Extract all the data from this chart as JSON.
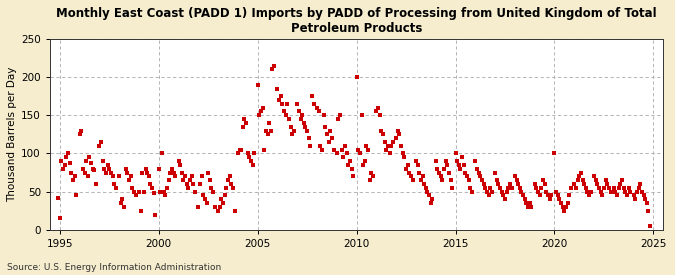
{
  "title": "Monthly East Coast (PADD 1) Imports by PADD of Processing from United Kingdom of Total\nPetroleum Products",
  "ylabel": "Thousand Barrels per Day",
  "source": "Source: U.S. Energy Information Administration",
  "fig_background_color": "#F5EDCE",
  "plot_background_color": "#FFFFFF",
  "marker_color": "#CC0000",
  "xlim": [
    1994.5,
    2025.5
  ],
  "ylim": [
    0,
    250
  ],
  "yticks": [
    0,
    50,
    100,
    150,
    200,
    250
  ],
  "xticks": [
    1995,
    2000,
    2005,
    2010,
    2015,
    2020,
    2025
  ],
  "data_points": [
    [
      1994.917,
      42
    ],
    [
      1995.0,
      15
    ],
    [
      1995.083,
      90
    ],
    [
      1995.167,
      80
    ],
    [
      1995.25,
      85
    ],
    [
      1995.333,
      95
    ],
    [
      1995.417,
      100
    ],
    [
      1995.5,
      88
    ],
    [
      1995.583,
      75
    ],
    [
      1995.667,
      65
    ],
    [
      1995.75,
      70
    ],
    [
      1995.833,
      45
    ],
    [
      1996.0,
      125
    ],
    [
      1996.083,
      130
    ],
    [
      1996.167,
      80
    ],
    [
      1996.25,
      75
    ],
    [
      1996.333,
      90
    ],
    [
      1996.417,
      70
    ],
    [
      1996.5,
      95
    ],
    [
      1996.583,
      88
    ],
    [
      1996.667,
      80
    ],
    [
      1996.75,
      78
    ],
    [
      1996.833,
      60
    ],
    [
      1997.0,
      110
    ],
    [
      1997.083,
      115
    ],
    [
      1997.167,
      90
    ],
    [
      1997.25,
      80
    ],
    [
      1997.333,
      75
    ],
    [
      1997.417,
      85
    ],
    [
      1997.5,
      80
    ],
    [
      1997.583,
      75
    ],
    [
      1997.667,
      70
    ],
    [
      1997.75,
      60
    ],
    [
      1997.833,
      55
    ],
    [
      1998.0,
      70
    ],
    [
      1998.083,
      35
    ],
    [
      1998.167,
      40
    ],
    [
      1998.25,
      30
    ],
    [
      1998.333,
      80
    ],
    [
      1998.417,
      75
    ],
    [
      1998.5,
      65
    ],
    [
      1998.583,
      70
    ],
    [
      1998.667,
      55
    ],
    [
      1998.75,
      50
    ],
    [
      1998.833,
      45
    ],
    [
      1999.0,
      50
    ],
    [
      1999.083,
      25
    ],
    [
      1999.167,
      75
    ],
    [
      1999.25,
      50
    ],
    [
      1999.333,
      80
    ],
    [
      1999.417,
      75
    ],
    [
      1999.5,
      70
    ],
    [
      1999.583,
      60
    ],
    [
      1999.667,
      55
    ],
    [
      1999.75,
      48
    ],
    [
      1999.833,
      20
    ],
    [
      2000.0,
      80
    ],
    [
      2000.083,
      50
    ],
    [
      2000.167,
      100
    ],
    [
      2000.25,
      50
    ],
    [
      2000.333,
      45
    ],
    [
      2000.417,
      55
    ],
    [
      2000.5,
      65
    ],
    [
      2000.583,
      75
    ],
    [
      2000.667,
      80
    ],
    [
      2000.75,
      75
    ],
    [
      2000.833,
      70
    ],
    [
      2001.0,
      90
    ],
    [
      2001.083,
      85
    ],
    [
      2001.167,
      75
    ],
    [
      2001.25,
      65
    ],
    [
      2001.333,
      70
    ],
    [
      2001.417,
      60
    ],
    [
      2001.5,
      55
    ],
    [
      2001.583,
      65
    ],
    [
      2001.667,
      70
    ],
    [
      2001.75,
      60
    ],
    [
      2001.833,
      50
    ],
    [
      2002.0,
      30
    ],
    [
      2002.083,
      60
    ],
    [
      2002.167,
      70
    ],
    [
      2002.25,
      45
    ],
    [
      2002.333,
      40
    ],
    [
      2002.417,
      35
    ],
    [
      2002.5,
      75
    ],
    [
      2002.583,
      65
    ],
    [
      2002.667,
      55
    ],
    [
      2002.75,
      50
    ],
    [
      2002.833,
      30
    ],
    [
      2003.0,
      25
    ],
    [
      2003.083,
      30
    ],
    [
      2003.167,
      40
    ],
    [
      2003.25,
      35
    ],
    [
      2003.333,
      45
    ],
    [
      2003.417,
      55
    ],
    [
      2003.5,
      65
    ],
    [
      2003.583,
      70
    ],
    [
      2003.667,
      60
    ],
    [
      2003.75,
      55
    ],
    [
      2003.833,
      25
    ],
    [
      2004.0,
      100
    ],
    [
      2004.083,
      105
    ],
    [
      2004.167,
      105
    ],
    [
      2004.25,
      135
    ],
    [
      2004.333,
      145
    ],
    [
      2004.417,
      140
    ],
    [
      2004.5,
      100
    ],
    [
      2004.583,
      95
    ],
    [
      2004.667,
      90
    ],
    [
      2004.75,
      85
    ],
    [
      2004.833,
      100
    ],
    [
      2005.0,
      190
    ],
    [
      2005.083,
      150
    ],
    [
      2005.167,
      155
    ],
    [
      2005.25,
      160
    ],
    [
      2005.333,
      105
    ],
    [
      2005.417,
      130
    ],
    [
      2005.5,
      125
    ],
    [
      2005.583,
      140
    ],
    [
      2005.667,
      130
    ],
    [
      2005.75,
      210
    ],
    [
      2005.833,
      215
    ],
    [
      2006.0,
      185
    ],
    [
      2006.083,
      170
    ],
    [
      2006.167,
      175
    ],
    [
      2006.25,
      165
    ],
    [
      2006.333,
      155
    ],
    [
      2006.417,
      150
    ],
    [
      2006.5,
      165
    ],
    [
      2006.583,
      145
    ],
    [
      2006.667,
      135
    ],
    [
      2006.75,
      125
    ],
    [
      2006.833,
      130
    ],
    [
      2007.0,
      165
    ],
    [
      2007.083,
      155
    ],
    [
      2007.167,
      145
    ],
    [
      2007.25,
      150
    ],
    [
      2007.333,
      140
    ],
    [
      2007.417,
      135
    ],
    [
      2007.5,
      130
    ],
    [
      2007.583,
      120
    ],
    [
      2007.667,
      110
    ],
    [
      2007.75,
      175
    ],
    [
      2007.833,
      165
    ],
    [
      2008.0,
      160
    ],
    [
      2008.083,
      155
    ],
    [
      2008.167,
      110
    ],
    [
      2008.25,
      105
    ],
    [
      2008.333,
      150
    ],
    [
      2008.417,
      135
    ],
    [
      2008.5,
      125
    ],
    [
      2008.583,
      115
    ],
    [
      2008.667,
      130
    ],
    [
      2008.75,
      120
    ],
    [
      2008.833,
      105
    ],
    [
      2009.0,
      100
    ],
    [
      2009.083,
      145
    ],
    [
      2009.167,
      150
    ],
    [
      2009.25,
      105
    ],
    [
      2009.333,
      95
    ],
    [
      2009.417,
      110
    ],
    [
      2009.5,
      100
    ],
    [
      2009.583,
      85
    ],
    [
      2009.667,
      90
    ],
    [
      2009.75,
      80
    ],
    [
      2009.833,
      70
    ],
    [
      2010.0,
      200
    ],
    [
      2010.083,
      105
    ],
    [
      2010.167,
      100
    ],
    [
      2010.25,
      150
    ],
    [
      2010.333,
      85
    ],
    [
      2010.417,
      90
    ],
    [
      2010.5,
      110
    ],
    [
      2010.583,
      105
    ],
    [
      2010.667,
      65
    ],
    [
      2010.75,
      75
    ],
    [
      2010.833,
      70
    ],
    [
      2011.0,
      155
    ],
    [
      2011.083,
      160
    ],
    [
      2011.167,
      150
    ],
    [
      2011.25,
      130
    ],
    [
      2011.333,
      125
    ],
    [
      2011.417,
      115
    ],
    [
      2011.5,
      105
    ],
    [
      2011.583,
      110
    ],
    [
      2011.667,
      100
    ],
    [
      2011.75,
      110
    ],
    [
      2011.833,
      115
    ],
    [
      2012.0,
      120
    ],
    [
      2012.083,
      130
    ],
    [
      2012.167,
      125
    ],
    [
      2012.25,
      110
    ],
    [
      2012.333,
      100
    ],
    [
      2012.417,
      95
    ],
    [
      2012.5,
      80
    ],
    [
      2012.583,
      85
    ],
    [
      2012.667,
      75
    ],
    [
      2012.75,
      70
    ],
    [
      2012.833,
      65
    ],
    [
      2013.0,
      90
    ],
    [
      2013.083,
      85
    ],
    [
      2013.167,
      75
    ],
    [
      2013.25,
      65
    ],
    [
      2013.333,
      70
    ],
    [
      2013.417,
      60
    ],
    [
      2013.5,
      55
    ],
    [
      2013.583,
      50
    ],
    [
      2013.667,
      45
    ],
    [
      2013.75,
      35
    ],
    [
      2013.833,
      40
    ],
    [
      2014.0,
      90
    ],
    [
      2014.083,
      80
    ],
    [
      2014.167,
      75
    ],
    [
      2014.25,
      70
    ],
    [
      2014.333,
      65
    ],
    [
      2014.417,
      80
    ],
    [
      2014.5,
      90
    ],
    [
      2014.583,
      85
    ],
    [
      2014.667,
      75
    ],
    [
      2014.75,
      65
    ],
    [
      2014.833,
      55
    ],
    [
      2015.0,
      100
    ],
    [
      2015.083,
      90
    ],
    [
      2015.167,
      85
    ],
    [
      2015.25,
      80
    ],
    [
      2015.333,
      95
    ],
    [
      2015.417,
      85
    ],
    [
      2015.5,
      75
    ],
    [
      2015.583,
      70
    ],
    [
      2015.667,
      65
    ],
    [
      2015.75,
      55
    ],
    [
      2015.833,
      50
    ],
    [
      2016.0,
      90
    ],
    [
      2016.083,
      80
    ],
    [
      2016.167,
      75
    ],
    [
      2016.25,
      70
    ],
    [
      2016.333,
      65
    ],
    [
      2016.417,
      60
    ],
    [
      2016.5,
      55
    ],
    [
      2016.583,
      50
    ],
    [
      2016.667,
      45
    ],
    [
      2016.75,
      55
    ],
    [
      2016.833,
      50
    ],
    [
      2017.0,
      75
    ],
    [
      2017.083,
      65
    ],
    [
      2017.167,
      60
    ],
    [
      2017.25,
      55
    ],
    [
      2017.333,
      50
    ],
    [
      2017.417,
      45
    ],
    [
      2017.5,
      40
    ],
    [
      2017.583,
      50
    ],
    [
      2017.667,
      55
    ],
    [
      2017.75,
      60
    ],
    [
      2017.833,
      55
    ],
    [
      2018.0,
      70
    ],
    [
      2018.083,
      65
    ],
    [
      2018.167,
      60
    ],
    [
      2018.25,
      55
    ],
    [
      2018.333,
      50
    ],
    [
      2018.417,
      45
    ],
    [
      2018.5,
      40
    ],
    [
      2018.583,
      35
    ],
    [
      2018.667,
      30
    ],
    [
      2018.75,
      35
    ],
    [
      2018.833,
      30
    ],
    [
      2019.0,
      60
    ],
    [
      2019.083,
      55
    ],
    [
      2019.167,
      50
    ],
    [
      2019.25,
      45
    ],
    [
      2019.333,
      55
    ],
    [
      2019.417,
      65
    ],
    [
      2019.5,
      60
    ],
    [
      2019.583,
      50
    ],
    [
      2019.667,
      45
    ],
    [
      2019.75,
      40
    ],
    [
      2019.833,
      45
    ],
    [
      2020.0,
      100
    ],
    [
      2020.083,
      50
    ],
    [
      2020.167,
      45
    ],
    [
      2020.25,
      40
    ],
    [
      2020.333,
      35
    ],
    [
      2020.417,
      30
    ],
    [
      2020.5,
      25
    ],
    [
      2020.583,
      30
    ],
    [
      2020.667,
      35
    ],
    [
      2020.75,
      45
    ],
    [
      2020.833,
      55
    ],
    [
      2021.0,
      60
    ],
    [
      2021.083,
      55
    ],
    [
      2021.167,
      65
    ],
    [
      2021.25,
      70
    ],
    [
      2021.333,
      75
    ],
    [
      2021.417,
      65
    ],
    [
      2021.5,
      60
    ],
    [
      2021.583,
      55
    ],
    [
      2021.667,
      50
    ],
    [
      2021.75,
      45
    ],
    [
      2021.833,
      50
    ],
    [
      2022.0,
      70
    ],
    [
      2022.083,
      65
    ],
    [
      2022.167,
      60
    ],
    [
      2022.25,
      55
    ],
    [
      2022.333,
      50
    ],
    [
      2022.417,
      45
    ],
    [
      2022.5,
      55
    ],
    [
      2022.583,
      65
    ],
    [
      2022.667,
      60
    ],
    [
      2022.75,
      55
    ],
    [
      2022.833,
      50
    ],
    [
      2023.0,
      55
    ],
    [
      2023.083,
      50
    ],
    [
      2023.167,
      45
    ],
    [
      2023.25,
      55
    ],
    [
      2023.333,
      60
    ],
    [
      2023.417,
      65
    ],
    [
      2023.5,
      55
    ],
    [
      2023.583,
      50
    ],
    [
      2023.667,
      45
    ],
    [
      2023.75,
      55
    ],
    [
      2023.833,
      50
    ],
    [
      2024.0,
      45
    ],
    [
      2024.083,
      40
    ],
    [
      2024.167,
      50
    ],
    [
      2024.25,
      55
    ],
    [
      2024.333,
      60
    ],
    [
      2024.417,
      50
    ],
    [
      2024.5,
      45
    ],
    [
      2024.583,
      40
    ],
    [
      2024.667,
      35
    ],
    [
      2024.75,
      25
    ],
    [
      2024.833,
      5
    ]
  ]
}
